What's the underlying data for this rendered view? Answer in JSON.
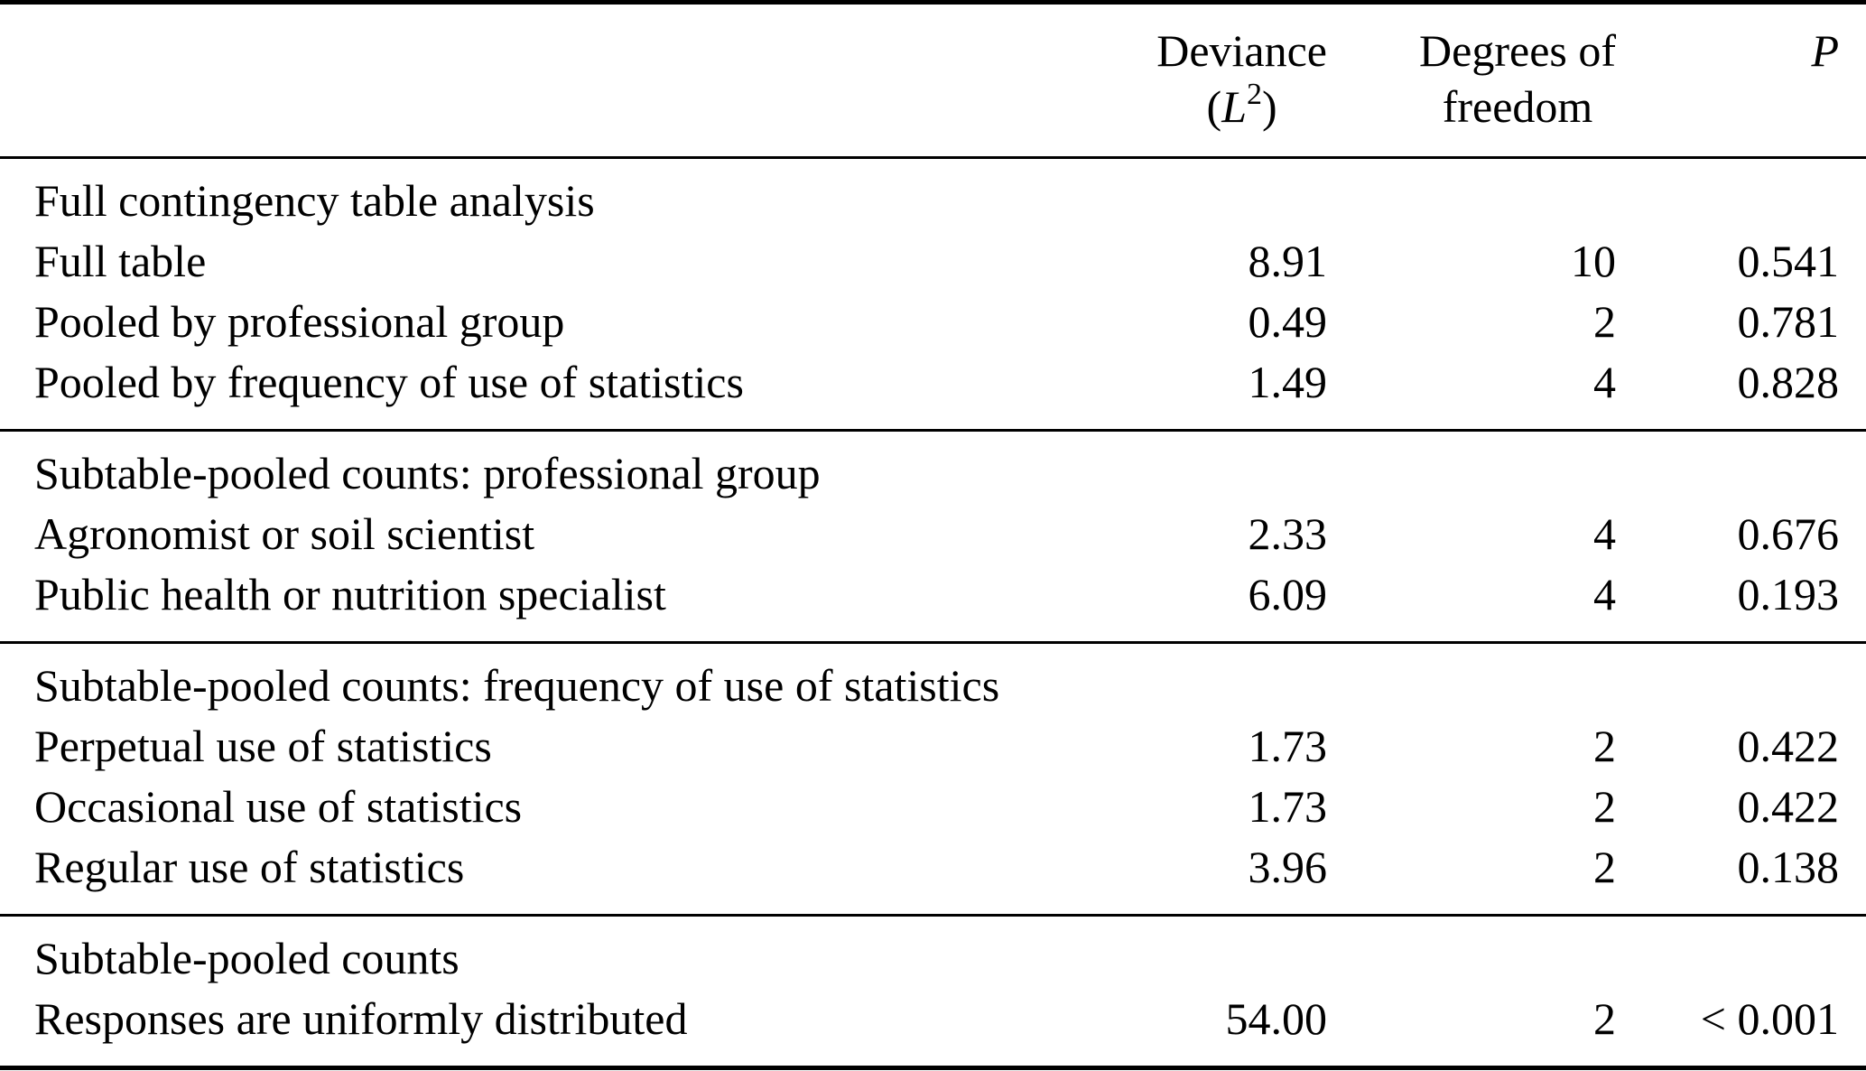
{
  "table": {
    "columns": {
      "deviance": {
        "line1": "Deviance",
        "paren_open": "(",
        "symbol": "L",
        "superscript": "2",
        "paren_close": ")"
      },
      "df": {
        "line1": "Degrees of",
        "line2": "freedom"
      },
      "p": {
        "label": "P"
      }
    },
    "sections": [
      {
        "header": "Full contingency table analysis",
        "rows": [
          {
            "label": "Full table",
            "deviance": "8.91",
            "df": "10",
            "p": "0.541"
          },
          {
            "label": "Pooled by professional group",
            "deviance": "0.49",
            "df": "2",
            "p": "0.781"
          },
          {
            "label": "Pooled by frequency of use of statistics",
            "deviance": "1.49",
            "df": "4",
            "p": "0.828"
          }
        ]
      },
      {
        "header": "Subtable-pooled counts: professional group",
        "rows": [
          {
            "label": "Agronomist or soil scientist",
            "deviance": "2.33",
            "df": "4",
            "p": "0.676"
          },
          {
            "label": "Public health or nutrition specialist",
            "deviance": "6.09",
            "df": "4",
            "p": "0.193"
          }
        ]
      },
      {
        "header": "Subtable-pooled counts: frequency of use of statistics",
        "rows": [
          {
            "label": "Perpetual use of statistics",
            "deviance": "1.73",
            "df": "2",
            "p": "0.422"
          },
          {
            "label": "Occasional use of statistics",
            "deviance": "1.73",
            "df": "2",
            "p": "0.422"
          },
          {
            "label": "Regular use of statistics",
            "deviance": "3.96",
            "df": "2",
            "p": "0.138"
          }
        ]
      },
      {
        "header": "Subtable-pooled counts",
        "rows": [
          {
            "label": "Responses are uniformly distributed",
            "deviance": "54.00",
            "df": "2",
            "p": "< 0.001"
          }
        ]
      }
    ]
  }
}
